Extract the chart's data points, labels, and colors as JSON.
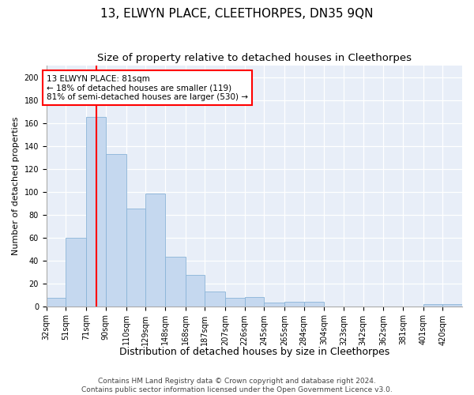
{
  "title": "13, ELWYN PLACE, CLEETHORPES, DN35 9QN",
  "subtitle": "Size of property relative to detached houses in Cleethorpes",
  "xlabel": "Distribution of detached houses by size in Cleethorpes",
  "ylabel": "Number of detached properties",
  "bar_color": "#c5d8ef",
  "bar_edge_color": "#8ab4d8",
  "background_color": "#e8eef8",
  "grid_color": "#ffffff",
  "vline_color": "red",
  "vline_x": 81,
  "annotation_text": "13 ELWYN PLACE: 81sqm\n← 18% of detached houses are smaller (119)\n81% of semi-detached houses are larger (530) →",
  "annotation_box_facecolor": "white",
  "annotation_box_edgecolor": "red",
  "categories": [
    "32sqm",
    "51sqm",
    "71sqm",
    "90sqm",
    "110sqm",
    "129sqm",
    "148sqm",
    "168sqm",
    "187sqm",
    "207sqm",
    "226sqm",
    "245sqm",
    "265sqm",
    "284sqm",
    "304sqm",
    "323sqm",
    "342sqm",
    "362sqm",
    "381sqm",
    "401sqm",
    "420sqm"
  ],
  "bin_edges": [
    32,
    51,
    71,
    90,
    110,
    129,
    148,
    168,
    187,
    207,
    226,
    245,
    265,
    284,
    304,
    323,
    342,
    362,
    381,
    401,
    420
  ],
  "values": [
    7,
    60,
    165,
    133,
    85,
    98,
    43,
    27,
    13,
    7,
    8,
    3,
    4,
    4,
    0,
    0,
    0,
    0,
    0,
    2,
    2
  ],
  "ylim": [
    0,
    210
  ],
  "yticks": [
    0,
    20,
    40,
    60,
    80,
    100,
    120,
    140,
    160,
    180,
    200
  ],
  "footer_line1": "Contains HM Land Registry data © Crown copyright and database right 2024.",
  "footer_line2": "Contains public sector information licensed under the Open Government Licence v3.0.",
  "title_fontsize": 11,
  "subtitle_fontsize": 9.5,
  "xlabel_fontsize": 9,
  "ylabel_fontsize": 8,
  "tick_fontsize": 7,
  "annot_fontsize": 7.5,
  "footer_fontsize": 6.5
}
